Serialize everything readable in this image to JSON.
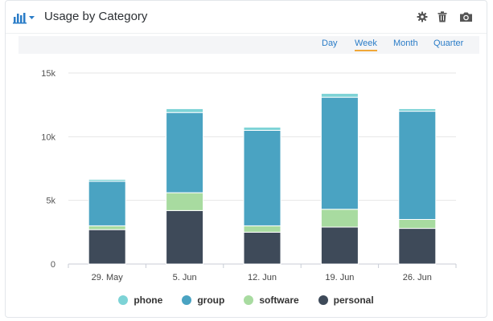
{
  "widget": {
    "title": "Usage by Category",
    "icons": {
      "chart_type": "bar-chart-icon",
      "dropdown": "caret-down-icon",
      "settings": "gear-icon",
      "delete": "trash-icon",
      "snapshot": "camera-icon"
    },
    "accent_color": "#2a7cc7"
  },
  "toolbar": {
    "periods": [
      "Day",
      "Week",
      "Month",
      "Quarter"
    ],
    "active": "Week",
    "active_color": "#f0a838"
  },
  "chart_data": {
    "type": "bar",
    "stacked": true,
    "categories": [
      "29. May",
      "5. Jun",
      "12. Jun",
      "19. Jun",
      "26. Jun"
    ],
    "y_tick_labels": [
      "0",
      "5k",
      "10k",
      "15k"
    ],
    "y_ticks": [
      0,
      5000,
      10000,
      15000
    ],
    "ylim": [
      0,
      15000
    ],
    "grid": true,
    "legend": "bottom-center",
    "series": [
      {
        "name": "personal",
        "color": "#3e4a59",
        "values": [
          2700,
          4200,
          2500,
          2900,
          2800
        ]
      },
      {
        "name": "software",
        "color": "#a8dba0",
        "values": [
          300,
          1400,
          500,
          1400,
          700
        ]
      },
      {
        "name": "group",
        "color": "#4aa3c2",
        "values": [
          3500,
          6300,
          7500,
          8800,
          8500
        ]
      },
      {
        "name": "phone",
        "color": "#7dd3d6",
        "values": [
          150,
          300,
          250,
          300,
          200
        ]
      }
    ],
    "legend_order": [
      "phone",
      "group",
      "software",
      "personal"
    ]
  }
}
